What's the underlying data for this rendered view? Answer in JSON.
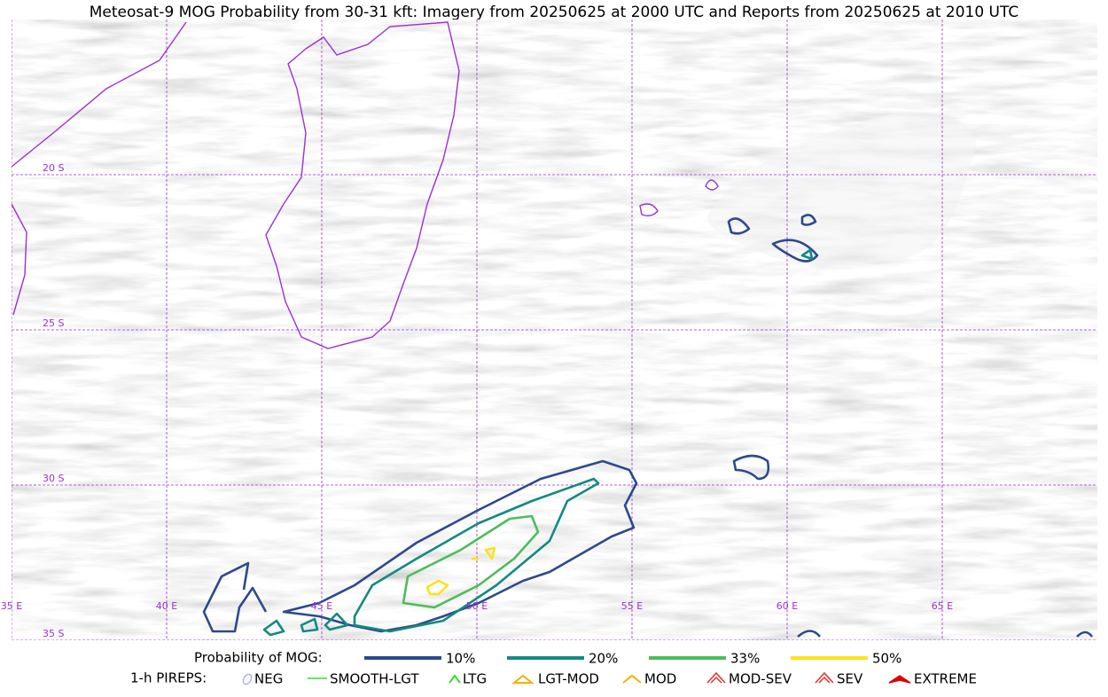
{
  "title": "Meteosat-9 MOG Probability from 30-31 kft: Imagery from 20250625 at 2000 UTC and Reports from 20250625 at 2010 UTC",
  "map": {
    "lonlim": [
      35,
      70
    ],
    "latlim": [
      -35,
      -15
    ],
    "lonticks": [
      {
        "value": 35,
        "label": "35 E"
      },
      {
        "value": 40,
        "label": "40 E"
      },
      {
        "value": 45,
        "label": "45 E"
      },
      {
        "value": 50,
        "label": "50 E"
      },
      {
        "value": 55,
        "label": "55 E"
      },
      {
        "value": 60,
        "label": "60 E"
      },
      {
        "value": 65,
        "label": "65 E"
      }
    ],
    "latticks": [
      {
        "value": -20,
        "label": "20 S"
      },
      {
        "value": -25,
        "label": "25 S"
      },
      {
        "value": -30,
        "label": "30 S"
      },
      {
        "value": -35,
        "label": "35 S"
      }
    ]
  },
  "legend": {
    "probability_title": "Probability of MOG:",
    "levels": [
      {
        "label": "10%",
        "color": "#2c4a8c"
      },
      {
        "label": "20%",
        "color": "#138a82"
      },
      {
        "label": "33%",
        "color": "#4dbd5a"
      },
      {
        "label": "50%",
        "color": "#ffe11a"
      }
    ],
    "pireps_title": "1-h PIREPS:",
    "pireps": [
      "NEG",
      "SMOOTH-LGT",
      "LTG",
      "LGT-MOD",
      "MOD",
      "MOD-SEV",
      "SEV",
      "EXTREME"
    ]
  }
}
